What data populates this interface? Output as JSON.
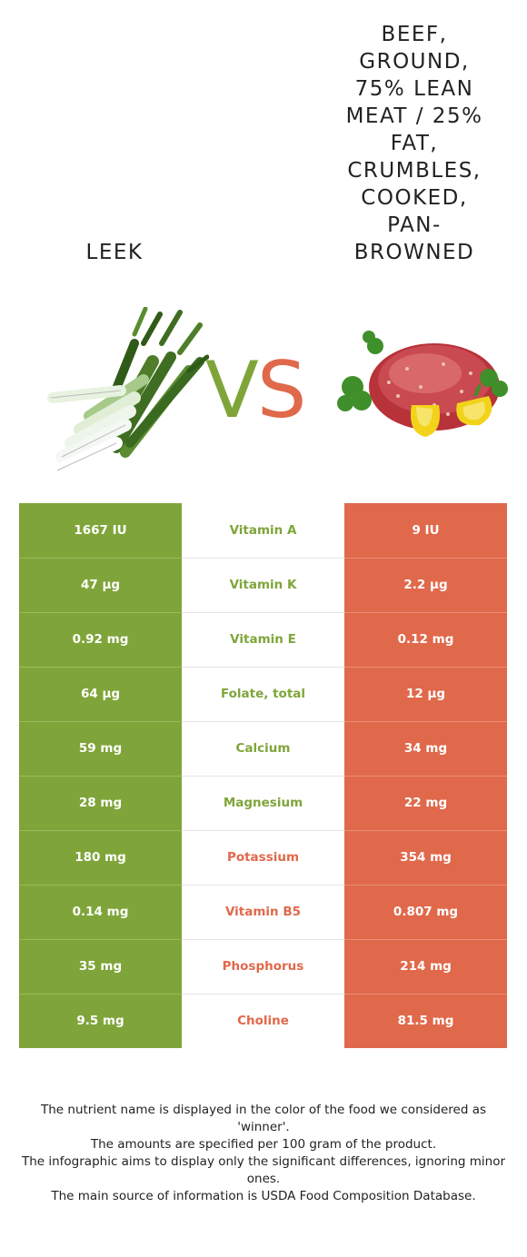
{
  "header": {
    "left_food": "LEEK",
    "right_food": "BEEF, GROUND, 75% LEAN MEAT / 25% FAT, CRUMBLES, COOKED, PAN-BROWNED"
  },
  "vs": {
    "v": "V",
    "s": "S"
  },
  "colors": {
    "left_accent": "#7fa53a",
    "right_accent": "#e0694b"
  },
  "comparison": [
    {
      "left": "1667 IU",
      "nutrient": "Vitamin A",
      "right": "9 IU",
      "winner": "left"
    },
    {
      "left": "47 µg",
      "nutrient": "Vitamin K",
      "right": "2.2 µg",
      "winner": "left"
    },
    {
      "left": "0.92 mg",
      "nutrient": "Vitamin E",
      "right": "0.12 mg",
      "winner": "left"
    },
    {
      "left": "64 µg",
      "nutrient": "Folate, total",
      "right": "12 µg",
      "winner": "left"
    },
    {
      "left": "59 mg",
      "nutrient": "Calcium",
      "right": "34 mg",
      "winner": "left"
    },
    {
      "left": "28 mg",
      "nutrient": "Magnesium",
      "right": "22 mg",
      "winner": "left"
    },
    {
      "left": "180 mg",
      "nutrient": "Potassium",
      "right": "354 mg",
      "winner": "right"
    },
    {
      "left": "0.14 mg",
      "nutrient": "Vitamin B5",
      "right": "0.807 mg",
      "winner": "right"
    },
    {
      "left": "35 mg",
      "nutrient": "Phosphorus",
      "right": "214 mg",
      "winner": "right"
    },
    {
      "left": "9.5 mg",
      "nutrient": "Choline",
      "right": "81.5 mg",
      "winner": "right"
    }
  ],
  "footer": {
    "line1": "The nutrient name is displayed in the color of the food we considered as 'winner'.",
    "line2": "The amounts are specified per 100 gram of the product.",
    "line3": "The infographic aims to display only the significant differences, ignoring minor ones.",
    "line4": "The main source of information is USDA Food Composition Database."
  }
}
